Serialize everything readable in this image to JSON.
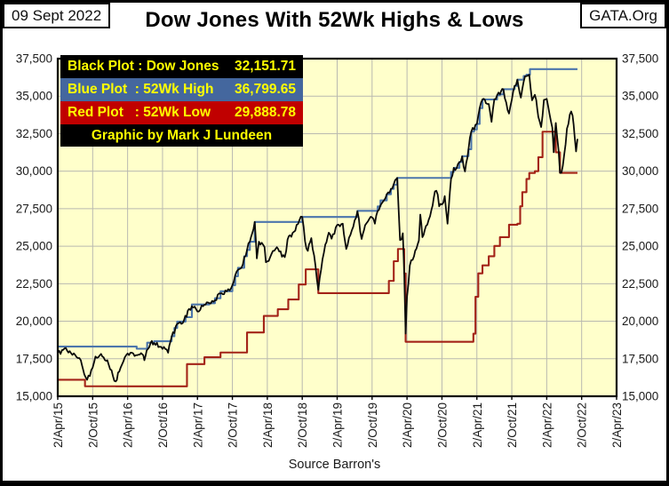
{
  "header": {
    "date": "09 Sept 2022",
    "org": "GATA.Org",
    "title": "Dow Jones With 52Wk Highs & Lows"
  },
  "footer": {
    "source": "Source Barron's"
  },
  "legend": {
    "text_color": "#FFFF00",
    "rows": [
      {
        "label": "Black Plot : Dow Jones",
        "value": "32,151.71",
        "bg": "#000000"
      },
      {
        "label": "Blue Plot  : 52Wk High",
        "value": "36,799.65",
        "bg": "#44679E"
      },
      {
        "label": "Red Plot   : 52Wk Low",
        "value": "29,888.78",
        "bg": "#C00000"
      }
    ],
    "credit": "Graphic by Mark J Lundeen"
  },
  "chart_data": {
    "type": "line",
    "title": "Dow Jones With 52Wk Highs & Lows",
    "xlabel": "",
    "ylabel": "",
    "ylim": [
      15000,
      37500
    ],
    "y_tick_step": 2500,
    "y_tick_labels": [
      "37,500",
      "35,000",
      "32,500",
      "30,000",
      "27,500",
      "25,000",
      "22,500",
      "20,000",
      "17,500",
      "15,000"
    ],
    "x_range_years": [
      2015.25,
      2023.25
    ],
    "x_tick_labels": [
      "2/Apr/15",
      "2/Oct/15",
      "2/Apr/16",
      "2/Oct/16",
      "2/Apr/17",
      "2/Oct/17",
      "2/Apr/18",
      "2/Oct/18",
      "2/Apr/19",
      "2/Oct/19",
      "2/Apr/20",
      "2/Oct/20",
      "2/Apr/21",
      "2/Oct/21",
      "2/Apr/22",
      "2/Oct/22",
      "2/Apr/23"
    ],
    "grid": true,
    "plot_bg": "#FFFFCB",
    "grid_color": "#B9B9B0",
    "legend_position": "top-left",
    "series": [
      {
        "name": "Dow Jones",
        "color": "#0A0A0A",
        "style": "line",
        "last_value": 32151.71,
        "x": [
          2015.25,
          2015.33,
          2015.42,
          2015.5,
          2015.58,
          2015.63,
          2015.67,
          2015.71,
          2015.79,
          2015.87,
          2015.96,
          2016.04,
          2016.08,
          2016.13,
          2016.21,
          2016.29,
          2016.37,
          2016.46,
          2016.49,
          2016.54,
          2016.58,
          2016.63,
          2016.71,
          2016.79,
          2016.83,
          2016.88,
          2016.96,
          2017.04,
          2017.13,
          2017.17,
          2017.25,
          2017.33,
          2017.42,
          2017.5,
          2017.58,
          2017.63,
          2017.67,
          2017.75,
          2017.83,
          2017.88,
          2017.96,
          2018.0,
          2018.07,
          2018.1,
          2018.13,
          2018.21,
          2018.23,
          2018.29,
          2018.37,
          2018.42,
          2018.5,
          2018.54,
          2018.63,
          2018.71,
          2018.75,
          2018.79,
          2018.83,
          2018.88,
          2018.92,
          2018.98,
          2019.02,
          2019.08,
          2019.13,
          2019.17,
          2019.25,
          2019.33,
          2019.38,
          2019.46,
          2019.5,
          2019.54,
          2019.6,
          2019.65,
          2019.71,
          2019.75,
          2019.79,
          2019.83,
          2019.92,
          2019.96,
          2020.02,
          2020.08,
          2020.11,
          2020.15,
          2020.19,
          2020.21,
          2020.23,
          2020.25,
          2020.29,
          2020.35,
          2020.42,
          2020.44,
          2020.47,
          2020.54,
          2020.6,
          2020.65,
          2020.69,
          2020.71,
          2020.75,
          2020.79,
          2020.83,
          2020.88,
          2020.92,
          2020.96,
          2021.0,
          2021.04,
          2021.08,
          2021.13,
          2021.17,
          2021.21,
          2021.25,
          2021.29,
          2021.33,
          2021.38,
          2021.42,
          2021.46,
          2021.5,
          2021.54,
          2021.58,
          2021.63,
          2021.67,
          2021.71,
          2021.75,
          2021.79,
          2021.83,
          2021.88,
          2021.92,
          2021.96,
          2022.0,
          2022.04,
          2022.08,
          2022.1,
          2022.13,
          2022.17,
          2022.21,
          2022.25,
          2022.29,
          2022.33,
          2022.35,
          2022.38,
          2022.42,
          2022.44,
          2022.46,
          2022.5,
          2022.54,
          2022.58,
          2022.6,
          2022.62,
          2022.65,
          2022.67,
          2022.69
        ],
        "y": [
          17900,
          18100,
          18010,
          17750,
          17400,
          16460,
          16100,
          16350,
          17650,
          17820,
          17400,
          16350,
          15990,
          16640,
          17600,
          17900,
          17740,
          17800,
          17400,
          18150,
          18570,
          18550,
          18300,
          18150,
          17900,
          18950,
          19830,
          19880,
          20820,
          21000,
          20650,
          21000,
          21200,
          21400,
          21850,
          21800,
          21990,
          22400,
          23430,
          23560,
          24750,
          25300,
          26616,
          24190,
          25300,
          24950,
          23930,
          24260,
          24830,
          24650,
          24270,
          25450,
          25960,
          26740,
          26950,
          25340,
          24690,
          25540,
          24390,
          22100,
          23430,
          25110,
          25900,
          25500,
          26420,
          26500,
          24815,
          26060,
          26720,
          27330,
          25480,
          26400,
          26820,
          26920,
          26500,
          27350,
          28050,
          28460,
          28820,
          29400,
          29551,
          25410,
          25860,
          23185,
          19173,
          21630,
          23720,
          24330,
          25380,
          27110,
          25600,
          26430,
          27430,
          28650,
          28430,
          27660,
          27780,
          28340,
          26500,
          29480,
          30220,
          30200,
          30610,
          30990,
          29980,
          31460,
          32630,
          32780,
          33150,
          34200,
          34780,
          34530,
          34480,
          33290,
          34790,
          35060,
          35120,
          35460,
          34580,
          33840,
          34750,
          35680,
          36100,
          34900,
          35970,
          36340,
          36430,
          34725,
          35090,
          34740,
          33610,
          32940,
          34755,
          34820,
          33810,
          32900,
          31260,
          33210,
          31390,
          29889,
          29890,
          31100,
          32845,
          33760,
          33980,
          33707,
          32283,
          31318,
          32151.71
        ]
      },
      {
        "name": "52Wk High",
        "color": "#4C76AC",
        "style": "step",
        "last_value": 36799.65,
        "x": [
          2015.25,
          2016.38,
          2016.53,
          2016.63,
          2016.88,
          2016.92,
          2016.96,
          2017.08,
          2017.17,
          2017.42,
          2017.5,
          2017.58,
          2017.75,
          2017.79,
          2017.83,
          2017.92,
          2017.96,
          2018.0,
          2018.07,
          2018.75,
          2019.54,
          2019.83,
          2019.87,
          2019.96,
          2020.02,
          2020.06,
          2020.11,
          2020.88,
          2020.92,
          2021.0,
          2021.04,
          2021.13,
          2021.17,
          2021.21,
          2021.25,
          2021.29,
          2021.33,
          2021.54,
          2021.58,
          2021.63,
          2021.79,
          2021.83,
          2021.92,
          2021.96,
          2022.01,
          2022.69
        ],
        "y": [
          18312,
          18167,
          18570,
          18668,
          19000,
          19550,
          19975,
          20270,
          21115,
          21200,
          21530,
          22000,
          22400,
          23000,
          23560,
          24330,
          24750,
          25300,
          26616,
          26951,
          27359,
          27650,
          28050,
          28460,
          28820,
          29100,
          29551,
          29950,
          30220,
          30610,
          31000,
          31460,
          32630,
          32780,
          33150,
          34200,
          34780,
          35060,
          35120,
          35460,
          35680,
          36100,
          36340,
          36432,
          36799.65,
          36799.65
        ]
      },
      {
        "name": "52Wk Low",
        "color": "#A32318",
        "style": "step",
        "last_value": 29888.78,
        "x": [
          2015.25,
          2015.64,
          2016.08,
          2017.1,
          2017.35,
          2017.58,
          2017.96,
          2018.2,
          2018.4,
          2018.55,
          2018.7,
          2018.8,
          2018.98,
          2019.99,
          2020.06,
          2020.12,
          2020.21,
          2020.23,
          2021.2,
          2021.23,
          2021.27,
          2021.33,
          2021.42,
          2021.5,
          2021.58,
          2021.71,
          2021.83,
          2021.87,
          2021.9,
          2021.96,
          2022.0,
          2022.08,
          2022.13,
          2022.19,
          2022.38,
          2022.44,
          2022.69
        ],
        "y": [
          16100,
          15666,
          15660,
          17140,
          17600,
          17917,
          19250,
          20357,
          20800,
          21450,
          22450,
          23460,
          21872,
          22690,
          24000,
          24815,
          23185,
          18632,
          19170,
          21630,
          23190,
          23720,
          24330,
          25015,
          25605,
          26430,
          26500,
          27660,
          28600,
          29480,
          29880,
          30000,
          30930,
          32630,
          31260,
          29888.78,
          29888.78
        ]
      }
    ]
  }
}
